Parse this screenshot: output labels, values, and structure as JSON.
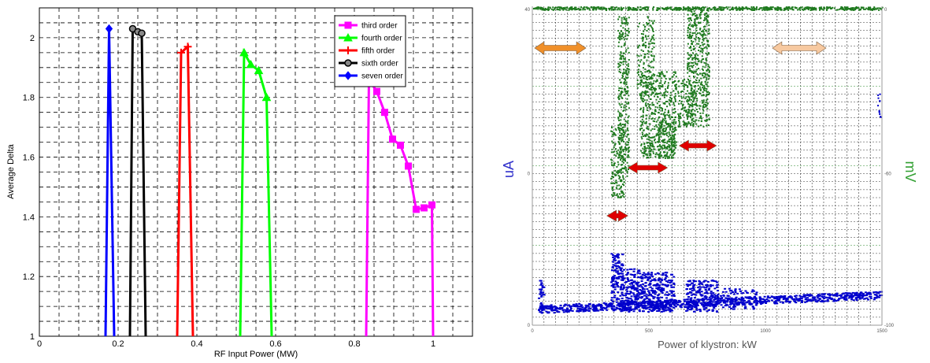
{
  "chart_data": [
    {
      "type": "line",
      "xlabel": "RF Input Power (MW)",
      "ylabel": "Average Delta",
      "xlim": [
        0,
        1.1
      ],
      "ylim": [
        1,
        2.1
      ],
      "xticks": [
        "0",
        "0.2",
        "0.4",
        "0.6",
        "0.8",
        "1"
      ],
      "yticks": [
        "1",
        "1.2",
        "1.4",
        "1.6",
        "1.8",
        "2"
      ],
      "grid": true,
      "legend_position": "top-right",
      "series": [
        {
          "name": "third order",
          "color": "#ff00ff",
          "marker": "square",
          "x": [
            0.83,
            0.837,
            0.857,
            0.877,
            0.897,
            0.917,
            0.937,
            0.957,
            0.977,
            0.997,
            1.0
          ],
          "y": [
            1.0,
            1.86,
            1.82,
            1.75,
            1.66,
            1.64,
            1.57,
            1.425,
            1.43,
            1.44,
            1.0
          ]
        },
        {
          "name": "fourth order",
          "color": "#00ff00",
          "marker": "triangle",
          "x": [
            0.51,
            0.52,
            0.537,
            0.557,
            0.577,
            0.59
          ],
          "y": [
            1.0,
            1.95,
            1.91,
            1.89,
            1.8,
            1.0
          ]
        },
        {
          "name": "fifth order",
          "color": "#ff0000",
          "marker": "plus",
          "x": [
            0.35,
            0.36,
            0.377,
            0.39
          ],
          "y": [
            1.0,
            1.95,
            1.97,
            1.0
          ]
        },
        {
          "name": "sixth order",
          "color": "#000000",
          "marker": "circle",
          "x": [
            0.23,
            0.237,
            0.25,
            0.26,
            0.27
          ],
          "y": [
            1.0,
            2.03,
            2.02,
            2.015,
            1.0
          ]
        },
        {
          "name": "seven order",
          "color": "#0000ff",
          "marker": "diamond",
          "x": [
            0.168,
            0.177,
            0.19
          ],
          "y": [
            1.0,
            2.03,
            1.0
          ]
        }
      ]
    },
    {
      "type": "scatter",
      "xlabel": "Power of klystron: kW",
      "ylabel": "uA",
      "y2label": "mV",
      "xlim": [
        0,
        1500
      ],
      "xticks": [
        "0",
        "500",
        "1000",
        "1500"
      ],
      "yticks_left": [
        "0",
        "0",
        "40"
      ],
      "yticks_right": [
        "-100",
        "-60",
        "0"
      ],
      "grid": true,
      "series": [
        {
          "name": "",
          "color": "#0000cc"
        },
        {
          "name": "",
          "color": "#1f7a1f"
        }
      ],
      "annotations": [
        {
          "type": "double-arrow",
          "color": "#f0902a",
          "x": [
            10,
            230
          ],
          "level": "upper"
        },
        {
          "type": "double-arrow",
          "color": "#f7c9a0",
          "x": [
            1030,
            1260
          ],
          "level": "upper"
        },
        {
          "type": "double-arrow",
          "color": "#e00000",
          "x": [
            630,
            790
          ],
          "level": "middle"
        },
        {
          "type": "double-arrow",
          "color": "#e00000",
          "x": [
            410,
            580
          ],
          "level": "middle-low"
        },
        {
          "type": "double-arrow",
          "color": "#e00000",
          "x": [
            320,
            410
          ],
          "level": "low"
        }
      ]
    }
  ]
}
